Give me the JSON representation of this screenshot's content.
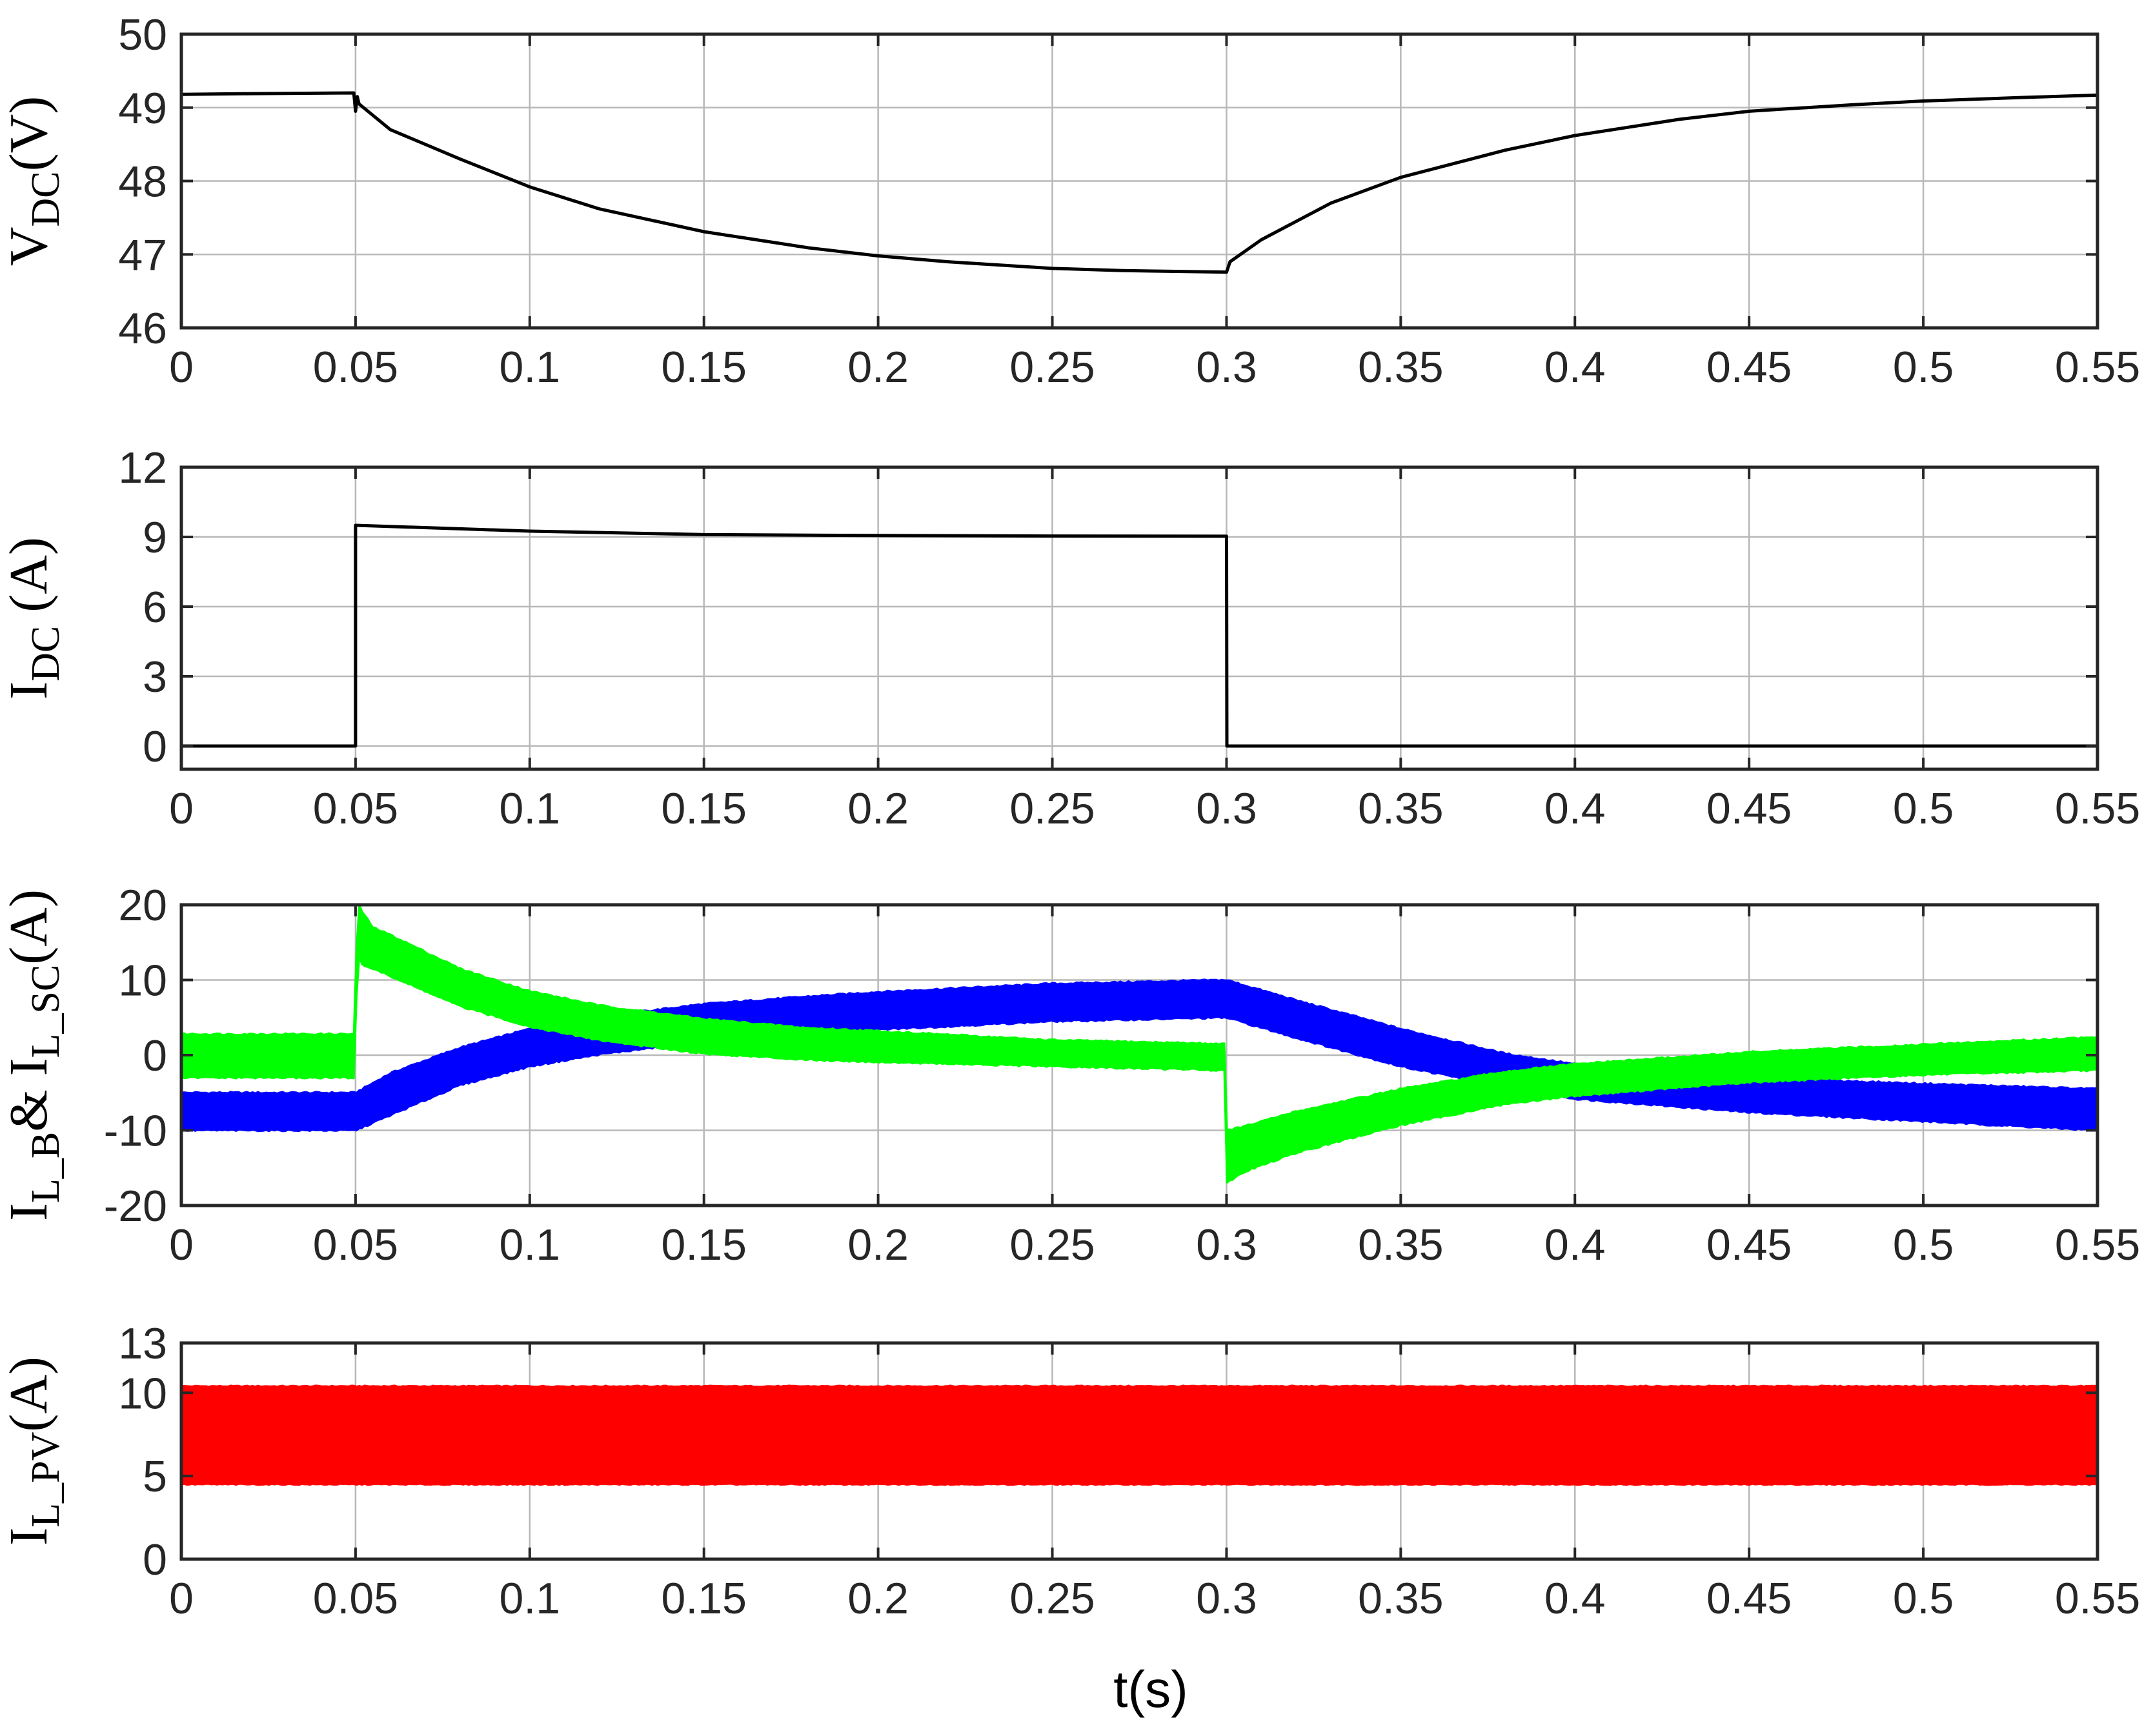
{
  "chart_data": [
    {
      "type": "line",
      "ylabel": {
        "main": "V",
        "sub": "DC",
        "tail": "(V)"
      },
      "xlim": [
        0,
        0.55
      ],
      "ylim": [
        46,
        50
      ],
      "xticks": [
        "0",
        "0.05",
        "0.1",
        "0.15",
        "0.2",
        "0.25",
        "0.3",
        "0.35",
        "0.4",
        "0.45",
        "0.5",
        "0.55"
      ],
      "yticks": [
        "46",
        "47",
        "48",
        "49",
        "50"
      ],
      "grid": true,
      "series": [
        {
          "color": "#000000",
          "x": [
            0,
            0.02,
            0.0495,
            0.05,
            0.0505,
            0.051,
            0.06,
            0.08,
            0.1,
            0.12,
            0.15,
            0.18,
            0.2,
            0.22,
            0.25,
            0.27,
            0.2995,
            0.3,
            0.301,
            0.31,
            0.33,
            0.35,
            0.38,
            0.4,
            0.43,
            0.45,
            0.48,
            0.5,
            0.53,
            0.55
          ],
          "y": [
            49.18,
            49.19,
            49.2,
            48.95,
            49.15,
            49.05,
            48.7,
            48.3,
            47.92,
            47.62,
            47.31,
            47.09,
            46.98,
            46.9,
            46.81,
            46.78,
            46.76,
            46.76,
            46.9,
            47.2,
            47.7,
            48.05,
            48.42,
            48.62,
            48.84,
            48.95,
            49.04,
            49.09,
            49.14,
            49.17
          ]
        }
      ]
    },
    {
      "type": "line",
      "ylabel": {
        "main": "I",
        "sub": "DC",
        "tail": " (A)"
      },
      "xlim": [
        0,
        0.55
      ],
      "ylim": [
        -1,
        12
      ],
      "xticks": [
        "0",
        "0.05",
        "0.1",
        "0.15",
        "0.2",
        "0.25",
        "0.3",
        "0.35",
        "0.4",
        "0.45",
        "0.5",
        "0.55"
      ],
      "yticks": [
        "0",
        "3",
        "6",
        "9",
        "12"
      ],
      "grid": true,
      "series": [
        {
          "color": "#000000",
          "x": [
            0,
            0.0499,
            0.05,
            0.05,
            0.1,
            0.15,
            0.2,
            0.25,
            0.2999,
            0.3,
            0.3001,
            0.55
          ],
          "y": [
            0,
            0,
            0,
            9.5,
            9.25,
            9.1,
            9.06,
            9.04,
            9.03,
            9.03,
            0,
            0
          ]
        }
      ]
    },
    {
      "type": "area",
      "ylabel": {
        "main": "I",
        "sub": "L_B",
        "mid": "& I",
        "sub2": "L_SC",
        "tail": "(A)"
      },
      "xlim": [
        0,
        0.55
      ],
      "ylim": [
        -20,
        20
      ],
      "xticks": [
        "0",
        "0.05",
        "0.1",
        "0.15",
        "0.2",
        "0.25",
        "0.3",
        "0.35",
        "0.4",
        "0.45",
        "0.5",
        "0.55"
      ],
      "yticks": [
        "-20",
        "-10",
        "0",
        "10",
        "20"
      ],
      "grid": true,
      "series": [
        {
          "color": "#0000ff",
          "x": [
            0,
            0.05,
            0.06,
            0.08,
            0.1,
            0.12,
            0.15,
            0.18,
            0.2,
            0.25,
            0.3,
            0.32,
            0.35,
            0.38,
            0.4,
            0.45,
            0.5,
            0.55
          ],
          "upper": [
            -5,
            -5,
            -2.4,
            1,
            3.5,
            5.1,
            6.8,
            7.8,
            8.4,
            9.5,
            10,
            7.3,
            3.5,
            0.2,
            -1.2,
            -3,
            -3.8,
            -4.5
          ],
          "lower": [
            -10,
            -10,
            -8,
            -4,
            -1.5,
            0.1,
            1.8,
            2.8,
            3.4,
            4.5,
            5,
            2.3,
            -1.5,
            -4.2,
            -5.8,
            -7.6,
            -8.8,
            -10
          ]
        },
        {
          "color": "#00ff00",
          "x": [
            0,
            0.0499,
            0.05,
            0.051,
            0.052,
            0.055,
            0.06,
            0.08,
            0.1,
            0.12,
            0.15,
            0.18,
            0.2,
            0.25,
            0.2999,
            0.3,
            0.305,
            0.32,
            0.35,
            0.38,
            0.4,
            0.45,
            0.5,
            0.55
          ],
          "upper": [
            2.8,
            2.8,
            12,
            20,
            19,
            17,
            16,
            11.5,
            8.5,
            6.6,
            4.8,
            3.6,
            3.2,
            2,
            1.5,
            -10,
            -9.5,
            -7.5,
            -4.5,
            -2.2,
            -1.2,
            0.4,
            1.4,
            2.4
          ],
          "lower": [
            -3,
            -3,
            6,
            13,
            12,
            11.5,
            10.5,
            6.5,
            3.8,
            2,
            0.2,
            -0.6,
            -0.9,
            -1.5,
            -2,
            -17,
            -15.5,
            -13,
            -9.3,
            -6.5,
            -5.4,
            -3.6,
            -2.6,
            -2
          ]
        }
      ]
    },
    {
      "type": "area",
      "ylabel": {
        "main": "I",
        "sub": "L_PV",
        "tail": "(A)"
      },
      "xlim": [
        0,
        0.55
      ],
      "ylim": [
        0,
        13
      ],
      "xticks": [
        "0",
        "0.05",
        "0.1",
        "0.15",
        "0.2",
        "0.25",
        "0.3",
        "0.35",
        "0.4",
        "0.45",
        "0.5",
        "0.55"
      ],
      "yticks": [
        "0",
        "5",
        "10",
        "13"
      ],
      "grid": true,
      "series": [
        {
          "color": "#ff0000",
          "x": [
            0,
            0.55
          ],
          "upper": [
            10.4,
            10.4
          ],
          "lower": [
            4.5,
            4.5
          ]
        }
      ]
    }
  ],
  "xlabel": "t(s)"
}
